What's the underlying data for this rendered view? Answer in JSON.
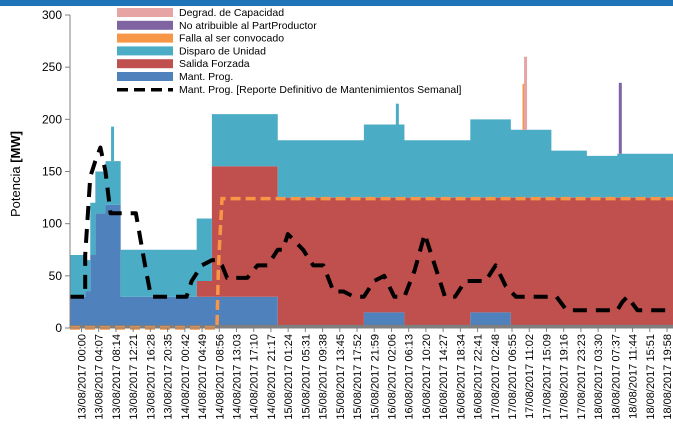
{
  "chart_data": {
    "type": "area",
    "ylabel_prefix": "Potencia ",
    "ylabel_unit": "[MW]",
    "ylim": [
      0,
      300
    ],
    "yticks": [
      0,
      50,
      100,
      150,
      200,
      250,
      300
    ],
    "grid": false,
    "legend_position": "top-center",
    "x_tick_labels": [
      "13/08/2017 00:00",
      "13/08/2017 04:07",
      "13/08/2017 08:14",
      "13/08/2017 12:21",
      "13/08/2017 16:28",
      "13/08/2017 20:35",
      "14/08/2017 00:42",
      "14/08/2017 04:49",
      "14/08/2017 08:56",
      "14/08/2017 13:03",
      "14/08/2017 17:10",
      "14/08/2017 21:17",
      "15/08/2017 01:24",
      "15/08/2017 05:31",
      "15/08/2017 09:38",
      "15/08/2017 13:45",
      "15/08/2017 17:52",
      "15/08/2017 21:59",
      "16/08/2017 02:06",
      "16/08/2017 06:13",
      "16/08/2017 10:20",
      "16/08/2017 14:27",
      "16/08/2017 18:34",
      "16/08/2017 22:41",
      "17/08/2017 02:48",
      "17/08/2017 06:55",
      "17/08/2017 11:02",
      "17/08/2017 15:09",
      "17/08/2017 19:16",
      "17/08/2017 23:23",
      "18/08/2017 03:30",
      "18/08/2017 07:37",
      "18/08/2017 11:44",
      "18/08/2017 15:51",
      "18/08/2017 19:58"
    ],
    "x_points": [
      0,
      3,
      3,
      4,
      4,
      5,
      5,
      7,
      7,
      10,
      10,
      11,
      11,
      15,
      15,
      25,
      25,
      28,
      28,
      41,
      41,
      58,
      58,
      66,
      66,
      79,
      79,
      87,
      87,
      95,
      95,
      102,
      102,
      108,
      108,
      119
    ],
    "series": [
      {
        "name": "Mant. Prog.",
        "color": "#4f81bd",
        "values": [
          30,
          30,
          35,
          35,
          70,
          70,
          110,
          110,
          118,
          118,
          30,
          30,
          30,
          30,
          30,
          30,
          30,
          30,
          30,
          30,
          0,
          0,
          15,
          15,
          0,
          0,
          15,
          15,
          0,
          0,
          0,
          0,
          0,
          0,
          0,
          0
        ]
      },
      {
        "name": "Salida Forzada",
        "color": "#c0504d",
        "values": [
          0,
          0,
          0,
          0,
          0,
          0,
          0,
          0,
          0,
          0,
          0,
          0,
          0,
          0,
          0,
          0,
          15,
          15,
          125,
          125,
          125,
          125,
          110,
          110,
          125,
          125,
          110,
          110,
          125,
          125,
          125,
          125,
          125,
          125,
          125,
          125
        ]
      },
      {
        "name": "Disparo de Unidad",
        "color": "#4bacc6",
        "values": [
          40,
          40,
          30,
          30,
          50,
          50,
          40,
          40,
          42,
          42,
          45,
          45,
          45,
          45,
          45,
          45,
          60,
          60,
          50,
          50,
          55,
          55,
          70,
          70,
          55,
          55,
          75,
          75,
          65,
          65,
          45,
          45,
          40,
          40,
          42,
          42
        ]
      },
      {
        "name": "Falla al ser convocado",
        "color": "#f79646",
        "values": [
          0,
          0,
          0,
          0,
          0,
          0,
          0,
          0,
          0,
          0,
          0,
          0,
          0,
          0,
          0,
          0,
          0,
          0,
          0,
          0,
          0,
          0,
          0,
          0,
          0,
          0,
          0,
          0,
          0,
          0,
          0,
          0,
          0,
          0,
          0,
          0
        ]
      },
      {
        "name": "No atribuible al PartProductor",
        "color": "#8064a2",
        "values": [
          0,
          0,
          0,
          0,
          0,
          0,
          0,
          0,
          0,
          0,
          0,
          0,
          0,
          0,
          0,
          0,
          0,
          0,
          0,
          0,
          0,
          0,
          0,
          0,
          0,
          0,
          0,
          0,
          0,
          0,
          0,
          0,
          0,
          0,
          0,
          0
        ]
      },
      {
        "name": "Degrad. de Capacidad",
        "color": "#e6a5a4",
        "values": [
          0,
          0,
          0,
          0,
          0,
          0,
          0,
          0,
          0,
          0,
          0,
          0,
          0,
          0,
          0,
          0,
          0,
          0,
          0,
          0,
          0,
          0,
          0,
          0,
          0,
          0,
          0,
          0,
          0,
          0,
          0,
          0,
          0,
          0,
          0,
          0
        ]
      }
    ],
    "spikes": [
      {
        "series": "Disparo de Unidad",
        "x": 8.4,
        "top": 193
      },
      {
        "series": "Falla al ser convocado",
        "x": 89.6,
        "top": 234
      },
      {
        "series": "Degrad. de Capacidad",
        "x": 89.9,
        "top": 260
      },
      {
        "series": "No atribuible al PartProductor",
        "x": 108.6,
        "top": 235
      },
      {
        "series": "Disparo de Unidad",
        "x": 64.6,
        "top": 215
      }
    ],
    "orange_dashed": {
      "name": "Falla al ser convocado",
      "color": "#f79646",
      "x": [
        0,
        29,
        29.3,
        30,
        119
      ],
      "y": [
        0,
        0,
        60,
        124,
        124
      ]
    },
    "black_dashed": {
      "name": "Mant. Prog. [Reporte Definitivo  de Mantenimientos Semanal]",
      "color": "#000000",
      "x": [
        0,
        3,
        3,
        4,
        5,
        6,
        7,
        8,
        9,
        10,
        11,
        13,
        15,
        16,
        18,
        20,
        22,
        23,
        24,
        26,
        28,
        29,
        30,
        31,
        33,
        35,
        37,
        39,
        41,
        42,
        43,
        46,
        48,
        50,
        52,
        54,
        56,
        58,
        60,
        62,
        64,
        66,
        68,
        70,
        72,
        74,
        76,
        78,
        80,
        82,
        84,
        86,
        88,
        90,
        92,
        94,
        96,
        98,
        100,
        102,
        104,
        106,
        108,
        109,
        110,
        112,
        114,
        116,
        119
      ],
      "y": [
        30,
        30,
        70,
        145,
        160,
        173,
        150,
        110,
        110,
        110,
        110,
        110,
        55,
        30,
        30,
        30,
        30,
        30,
        45,
        60,
        65,
        65,
        60,
        48,
        48,
        48,
        60,
        60,
        75,
        75,
        90,
        75,
        60,
        60,
        35,
        35,
        30,
        30,
        45,
        50,
        30,
        30,
        55,
        90,
        60,
        30,
        30,
        45,
        45,
        45,
        60,
        40,
        30,
        30,
        30,
        30,
        30,
        17,
        17,
        17,
        17,
        17,
        17,
        25,
        30,
        17,
        17,
        17,
        17
      ]
    },
    "legend": [
      {
        "label": "Degrad. de Capacidad",
        "color": "#e6a5a4",
        "kind": "patch"
      },
      {
        "label": "No atribuible al PartProductor",
        "color": "#8064a2",
        "kind": "patch"
      },
      {
        "label": "Falla al ser convocado",
        "color": "#f79646",
        "kind": "patch"
      },
      {
        "label": "Disparo de Unidad",
        "color": "#4bacc6",
        "kind": "patch"
      },
      {
        "label": "Salida Forzada",
        "color": "#c0504d",
        "kind": "patch"
      },
      {
        "label": "Mant. Prog.",
        "color": "#4f81bd",
        "kind": "patch"
      },
      {
        "label": "Mant. Prog. [Reporte Definitivo  de Mantenimientos Semanal]",
        "color": "#000000",
        "kind": "dashed"
      }
    ],
    "colors": {
      "header_bar": "#1f73b7",
      "axis": "#808080",
      "baseline": "#7f7f7f"
    }
  }
}
